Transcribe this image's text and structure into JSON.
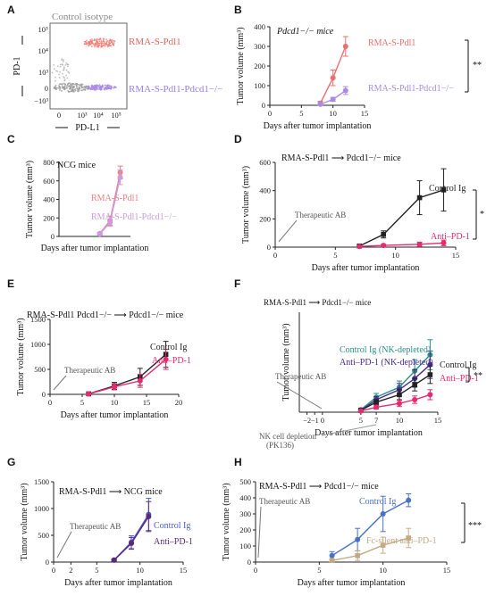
{
  "panels": {
    "A": {
      "letter": "A",
      "title": "Control isotype",
      "ylabel": "PD-1",
      "xlabel": "PD-L1",
      "xticks": [
        "0",
        "10³",
        "10⁴",
        "10⁵"
      ],
      "yticks": [
        "10⁵",
        "10⁴",
        "10³",
        "0",
        "−10³"
      ],
      "label_top": "RMA-S-Pdl1",
      "label_bottom": "RMA-S-Pdl1-Pdcd1−/−"
    },
    "B": {
      "letter": "B",
      "title": "Pdcd1−/− mice",
      "sig": "**"
    },
    "C": {
      "letter": "C",
      "title": "NCG mice"
    },
    "D": {
      "letter": "D",
      "title": "RMA-S-Pdl1 ⟶ Pdcd1−/− mice",
      "sig": "*",
      "annot": "Therapeutic AB"
    },
    "E": {
      "letter": "E",
      "title": "RMA-S-Pdl1 Pdcd1−/− ⟶ Pdcd1−/− mice",
      "annot": "Therapeutic AB"
    },
    "F": {
      "letter": "F",
      "title": "RMA-S-Pdl1 ⟶ Pdcd1−/− mice",
      "sig": "**",
      "annot": "Therapeutic AB",
      "nk_annot": "NK cell depletion",
      "nk_annot2": "(PK136)"
    },
    "G": {
      "letter": "G",
      "title": "RMA-S-Pdl1 ⟶ NCG mice",
      "annot": "Therapeutic AB"
    },
    "H": {
      "letter": "H",
      "title": "RMA-S-Pdl1 ⟶ Pdcd1−/− mice",
      "sig": "***",
      "annot": "Therapeutic AB"
    }
  },
  "chart_data": [
    {
      "panel": "B",
      "type": "line",
      "xlabel": "Days after tumor implantation",
      "ylabel": "Tumor volume (mm³)",
      "xlim": [
        0,
        15
      ],
      "ylim": [
        0,
        400
      ],
      "xticks": [
        0,
        5,
        10,
        15
      ],
      "yticks": [
        0,
        100,
        200,
        300,
        400
      ],
      "series": [
        {
          "name": "RMA-S-Pdl1",
          "color": "#e8706e",
          "x": [
            8,
            10,
            12
          ],
          "y": [
            10,
            140,
            300
          ],
          "err": [
            10,
            40,
            50
          ]
        },
        {
          "name": "RMA-S-Pdl1-Pdcd1−/−",
          "color": "#a98be3",
          "x": [
            8,
            10,
            12
          ],
          "y": [
            5,
            30,
            75
          ],
          "err": [
            5,
            10,
            20
          ]
        }
      ]
    },
    {
      "panel": "C",
      "type": "line",
      "xlabel": "Days after tumor implantation",
      "ylabel": "Tumor volume (mm³)",
      "xlim": [
        0,
        14
      ],
      "ylim": [
        0,
        800
      ],
      "xticks": [],
      "yticks": [
        0,
        200,
        400,
        600,
        800
      ],
      "series": [
        {
          "name": "RMA-S-Pdl1",
          "color": "#f07e85",
          "x": [
            8,
            10,
            12
          ],
          "y": [
            30,
            170,
            690
          ],
          "err": [
            10,
            50,
            70
          ]
        },
        {
          "name": "RMA-S-Pdl1-Pdcd1−/−",
          "color": "#cb9be0",
          "x": [
            8,
            10,
            12
          ],
          "y": [
            25,
            150,
            640
          ],
          "err": [
            10,
            40,
            80
          ]
        }
      ]
    },
    {
      "panel": "D",
      "type": "line",
      "xlabel": "Days after tumor implantation",
      "ylabel": "Tumor volume (mm³)",
      "xlim": [
        0,
        15
      ],
      "ylim": [
        0,
        600
      ],
      "xticks": [
        0,
        5,
        10,
        15
      ],
      "yticks": [
        0,
        200,
        400,
        600
      ],
      "series": [
        {
          "name": "Control Ig",
          "color": "#222222",
          "x": [
            7,
            9,
            12,
            14
          ],
          "y": [
            8,
            90,
            350,
            405
          ],
          "err": [
            5,
            25,
            120,
            150
          ]
        },
        {
          "name": "Anti–PD-1",
          "color": "#e52b6f",
          "x": [
            7,
            9,
            12,
            14
          ],
          "y": [
            5,
            12,
            20,
            30
          ],
          "err": [
            3,
            8,
            15,
            20
          ]
        }
      ]
    },
    {
      "panel": "E",
      "type": "line",
      "xlabel": "Days after tumor implantation",
      "ylabel": "Tumor volume (mm³)",
      "xlim": [
        0,
        20
      ],
      "ylim": [
        0,
        1500
      ],
      "xticks": [
        0,
        5,
        10,
        15,
        20
      ],
      "yticks": [
        0,
        500,
        1000,
        1500
      ],
      "series": [
        {
          "name": "Control Ig",
          "color": "#222222",
          "x": [
            6,
            10,
            14,
            18
          ],
          "y": [
            10,
            170,
            350,
            800
          ],
          "err": [
            10,
            70,
            170,
            260
          ]
        },
        {
          "name": "Anti–PD-1",
          "color": "#e52b6f",
          "x": [
            6,
            10,
            14,
            18
          ],
          "y": [
            8,
            150,
            270,
            700
          ],
          "err": [
            8,
            60,
            130,
            200
          ]
        }
      ]
    },
    {
      "panel": "F",
      "type": "line",
      "xlabel": "Days after tumor implantation",
      "ylabel": "Tumor volume (mm³)",
      "xlim": [
        -3,
        15
      ],
      "ylim": [
        0,
        800
      ],
      "xticks": [
        -2,
        -1,
        0,
        5,
        7,
        10,
        15
      ],
      "yticks": [],
      "series": [
        {
          "name": "Control Ig (NK-depleted)",
          "color": "#2a8f86",
          "x": [
            5,
            7,
            10,
            12,
            14
          ],
          "y": [
            20,
            120,
            200,
            330,
            460
          ],
          "err": [
            10,
            30,
            50,
            90,
            120
          ]
        },
        {
          "name": "Anti–PD-1 (NK-depleted)",
          "color": "#4b2a8c",
          "x": [
            5,
            7,
            10,
            12,
            14
          ],
          "y": [
            15,
            100,
            180,
            270,
            380
          ],
          "err": [
            10,
            25,
            50,
            70,
            110
          ]
        },
        {
          "name": "Control Ig",
          "color": "#222222",
          "x": [
            5,
            7,
            10,
            12,
            14
          ],
          "y": [
            15,
            80,
            140,
            220,
            300
          ],
          "err": [
            8,
            20,
            40,
            50,
            70
          ]
        },
        {
          "name": "Anti–PD-1",
          "color": "#e52b6f",
          "x": [
            5,
            7,
            10,
            12,
            14
          ],
          "y": [
            10,
            40,
            70,
            100,
            140
          ],
          "err": [
            5,
            15,
            25,
            30,
            40
          ]
        }
      ]
    },
    {
      "panel": "G",
      "type": "line",
      "xlabel": "Days after tumor implantation",
      "ylabel": "Tumor volume (mm³)",
      "xlim": [
        0,
        15
      ],
      "ylim": [
        0,
        1500
      ],
      "xticks": [
        0,
        2,
        5,
        10,
        15
      ],
      "yticks": [
        0,
        500,
        1000,
        1500
      ],
      "series": [
        {
          "name": "Control Ig",
          "color": "#4a5bd0",
          "x": [
            7,
            9,
            11
          ],
          "y": [
            40,
            370,
            890
          ],
          "err": [
            20,
            120,
            300
          ]
        },
        {
          "name": "Anti–PD-1",
          "color": "#5a2a7a",
          "x": [
            7,
            9,
            11
          ],
          "y": [
            35,
            350,
            850
          ],
          "err": [
            20,
            110,
            280
          ]
        }
      ]
    },
    {
      "panel": "H",
      "type": "line",
      "xlabel": "Days after tumor implantation",
      "ylabel": "Tumor volume (mm³)",
      "xlim": [
        0,
        15
      ],
      "ylim": [
        0,
        500
      ],
      "xticks": [
        0,
        5,
        10,
        15
      ],
      "yticks": [
        0,
        100,
        200,
        300,
        400,
        500
      ],
      "series": [
        {
          "name": "Control Ig",
          "color": "#4a72c4",
          "x": [
            6,
            8,
            10,
            12
          ],
          "y": [
            40,
            140,
            300,
            385
          ],
          "err": [
            25,
            70,
            110,
            40
          ]
        },
        {
          "name": "Fc-silent anti–PD-1",
          "color": "#c4aa84",
          "x": [
            6,
            8,
            10,
            12
          ],
          "y": [
            10,
            40,
            105,
            150
          ],
          "err": [
            10,
            30,
            50,
            60
          ]
        }
      ]
    }
  ]
}
